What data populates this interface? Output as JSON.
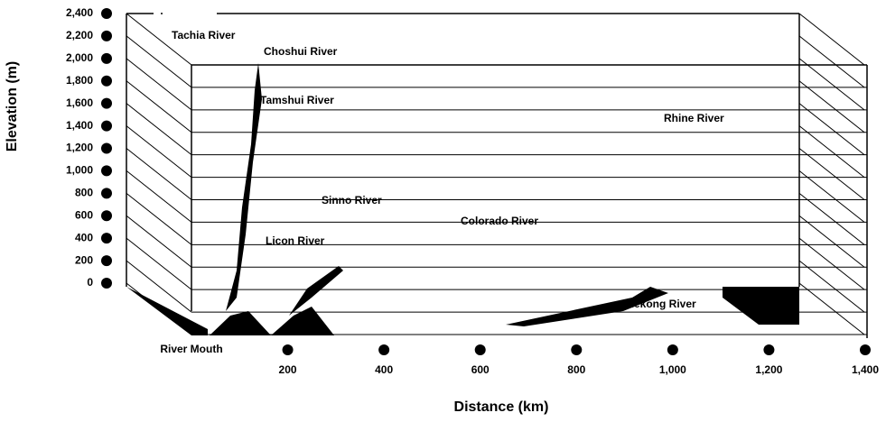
{
  "chart_data": {
    "type": "line",
    "x_label": "Distance (km)",
    "y_label": "Elevation (m)",
    "xlim": [
      0,
      1400
    ],
    "ylim": [
      0,
      2400
    ],
    "xticks": [
      {
        "value": 0,
        "label": "River Mouth"
      },
      200,
      400,
      600,
      800,
      {
        "value": 1000,
        "label": "1,000"
      },
      {
        "value": 1200,
        "label": "1,200"
      },
      {
        "value": 1400,
        "label": "1,400"
      }
    ],
    "yticks": [
      0,
      200,
      400,
      600,
      800,
      {
        "value": 1000,
        "label": "1,000"
      },
      {
        "value": 1200,
        "label": "1,200"
      },
      {
        "value": 1400,
        "label": "1,400"
      },
      {
        "value": 1600,
        "label": "1,600"
      },
      {
        "value": 1800,
        "label": "1,800"
      },
      {
        "value": 2000,
        "label": "2,000"
      },
      {
        "value": 2200,
        "label": "2,200"
      },
      {
        "value": 2400,
        "label": "2,400"
      }
    ],
    "grid": true,
    "annotations": [
      "Tachia River",
      "Choshui River",
      "Tamshui River",
      "Rhine River",
      "Sinno River",
      "Colorado River",
      "Licon River",
      "Mekong River"
    ]
  }
}
